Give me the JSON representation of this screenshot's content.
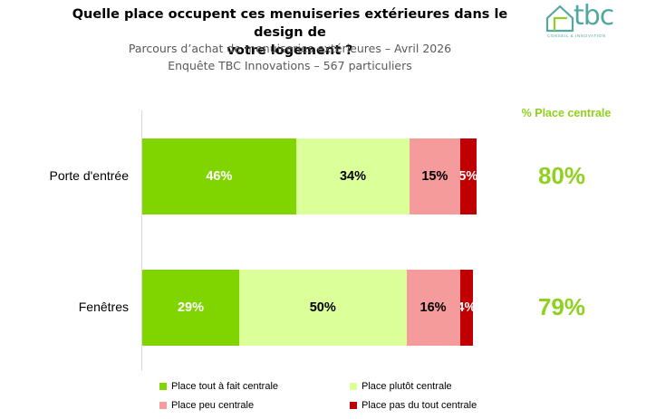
{
  "header": {
    "title_line1": "Quelle place occupent ces menuiseries extérieures dans le design de",
    "title_line2": "votre logement ?",
    "subtitle_line1": "Parcours d’achat de menuiseries extérieures – Avril 2026",
    "subtitle_line2": "Enquête TBC Innovations – 567 particuliers"
  },
  "logo": {
    "text": "tbc",
    "tagline": "CONSEIL & INNOVATION",
    "icon": "house-outline-icon",
    "color": "#52a8a0"
  },
  "chart_data": {
    "type": "bar",
    "orientation": "horizontal",
    "stacked": true,
    "categories": [
      "Porte d'entrée",
      "Fenêtres"
    ],
    "series": [
      {
        "name": "Place tout à fait centrale",
        "color": "#80d400",
        "values": [
          46,
          29
        ],
        "labels": [
          "46%",
          "29%"
        ],
        "label_color": "#ffffff"
      },
      {
        "name": "Place plutôt centrale",
        "color": "#dbff99",
        "values": [
          34,
          50
        ],
        "labels": [
          "34%",
          "50%"
        ],
        "label_color": "#000000"
      },
      {
        "name": "Place peu centrale",
        "color": "#f59b9b",
        "values": [
          15,
          16
        ],
        "labels": [
          "15%",
          "16%"
        ],
        "label_color": "#000000"
      },
      {
        "name": "Place pas du tout centrale",
        "color": "#c00000",
        "values": [
          5,
          4
        ],
        "labels": [
          "5%",
          "4%"
        ],
        "label_color": "#ffffff"
      }
    ],
    "xlim": [
      0,
      100
    ],
    "side_column": {
      "header": "% Place centrale",
      "values": [
        "80%",
        "79%"
      ],
      "color": "#8fd11e"
    },
    "legend": {
      "placement": "bottom",
      "columns": 2
    }
  }
}
